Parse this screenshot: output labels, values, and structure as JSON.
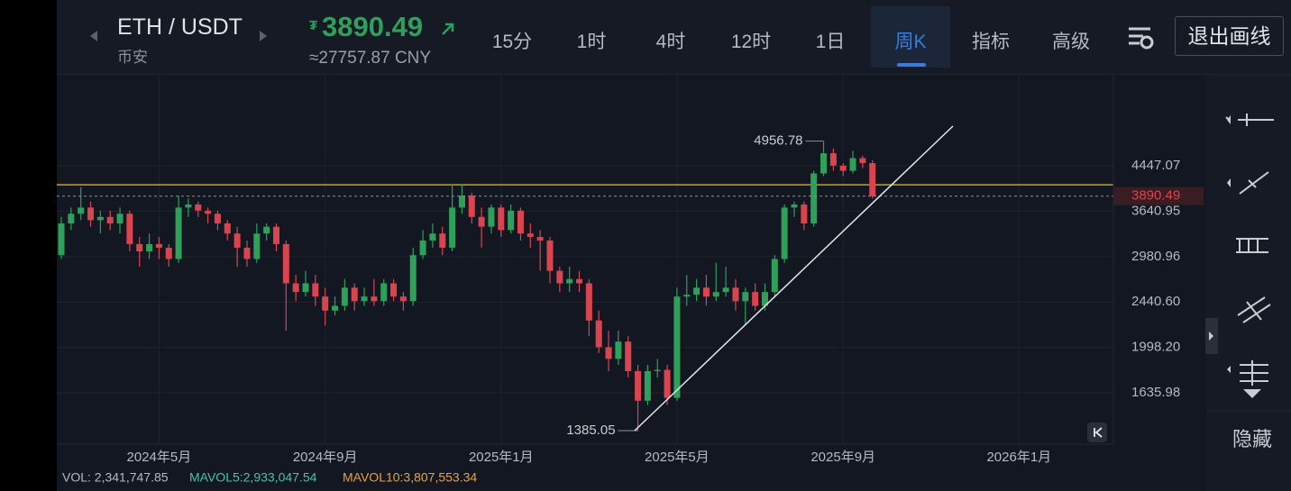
{
  "header": {
    "pair": "ETH / USDT",
    "exchange": "币安",
    "price": "3890.49",
    "cny": "≈27757.87 CNY",
    "intervals": [
      "15分",
      "1时",
      "4时",
      "12时",
      "1日",
      "周K"
    ],
    "menus": [
      "指标",
      "高级"
    ],
    "exit": "退出画线"
  },
  "sidebar": {
    "hide": "隐藏"
  },
  "volume": {
    "vol": "VOL: 2,341,747.85",
    "mavol5": "MAVOL5:2,933,047.54",
    "mavol10": "MAVOL10:3,807,553.34"
  },
  "chart_data": {
    "type": "candlestick",
    "categories": [
      null,
      null,
      null,
      null,
      null,
      null,
      null,
      null,
      null,
      null,
      "2024年5月",
      null,
      null,
      null,
      null,
      null,
      null,
      null,
      null,
      null,
      null,
      null,
      null,
      null,
      null,
      null,
      null,
      "2024年9月",
      null,
      null,
      null,
      null,
      null,
      null,
      null,
      null,
      null,
      null,
      null,
      null,
      null,
      null,
      null,
      null,
      null,
      "2025年1月",
      null,
      null,
      null,
      null,
      null,
      null,
      null,
      null,
      null,
      null,
      null,
      null,
      null,
      null,
      null,
      null,
      null,
      "2025年5月",
      null,
      null,
      null,
      null,
      null,
      null,
      null,
      null,
      null,
      null,
      null,
      null,
      null,
      null,
      null,
      null,
      "2025年9月",
      null,
      null,
      null,
      null,
      null,
      null,
      null,
      null,
      null,
      null,
      null,
      null,
      null,
      null,
      null,
      null,
      null,
      "2026年1月"
    ],
    "open": [
      3000,
      3450,
      3600,
      3700,
      3500,
      3550,
      3450,
      3600,
      3150,
      3050,
      3150,
      3100,
      2950,
      3700,
      3750,
      3650,
      3600,
      3450,
      3300,
      3100,
      2950,
      3300,
      3400,
      3150,
      2650,
      2550,
      2650,
      2500,
      2350,
      2400,
      2600,
      2450,
      2500,
      2450,
      2650,
      2500,
      2450,
      3000,
      3200,
      3300,
      3100,
      3700,
      3900,
      3550,
      3400,
      3700,
      3350,
      3650,
      3300,
      3250,
      3200,
      2800,
      2650,
      2700,
      2650,
      2250,
      2000,
      1900,
      2050,
      1800,
      1580,
      1800,
      1810,
      1600,
      2500,
      2520,
      2600,
      2500,
      2550,
      2600,
      2450,
      2550,
      2400,
      2550,
      2950,
      3700,
      3750,
      3450,
      4300,
      4700,
      4450,
      4350,
      4600,
      4500,
      null,
      null,
      null,
      null,
      null,
      null,
      null,
      null,
      null,
      null,
      null,
      null,
      null,
      null,
      null
    ],
    "high": [
      3550,
      3700,
      4050,
      3800,
      3650,
      3650,
      3700,
      3650,
      3250,
      3300,
      3250,
      3150,
      3900,
      3850,
      3800,
      3700,
      3650,
      3500,
      3400,
      3200,
      3450,
      3450,
      3450,
      3200,
      2750,
      2800,
      2750,
      2600,
      2500,
      2700,
      2650,
      2600,
      2700,
      2700,
      2700,
      2550,
      3100,
      3350,
      3450,
      3400,
      4100,
      4100,
      3950,
      3700,
      3750,
      3750,
      3750,
      3700,
      3450,
      3350,
      3250,
      2850,
      2850,
      2800,
      2700,
      2350,
      2150,
      2150,
      2100,
      1850,
      1850,
      1900,
      1850,
      2600,
      2750,
      2700,
      2750,
      2900,
      2850,
      2700,
      2600,
      2650,
      2650,
      3000,
      3750,
      3800,
      3800,
      4350,
      4956.78,
      4800,
      4500,
      4750,
      4650,
      4560,
      null,
      null,
      null,
      null,
      null,
      null,
      null,
      null,
      null,
      null,
      null,
      null,
      null,
      null,
      null
    ],
    "low": [
      2950,
      3350,
      3500,
      3400,
      3300,
      3350,
      3300,
      3050,
      2850,
      2950,
      2950,
      2850,
      2900,
      3550,
      3550,
      3450,
      3350,
      3200,
      2850,
      2850,
      2900,
      3200,
      3050,
      2150,
      2450,
      2500,
      2400,
      2200,
      2300,
      2350,
      2350,
      2400,
      2400,
      2400,
      2450,
      2350,
      2400,
      2950,
      3100,
      3000,
      3050,
      3600,
      3450,
      3100,
      3300,
      3250,
      3300,
      3200,
      3100,
      2800,
      2650,
      2550,
      2550,
      2550,
      2100,
      1950,
      1800,
      1850,
      1750,
      1385.05,
      1550,
      1750,
      1550,
      1580,
      2400,
      2450,
      2400,
      2450,
      2500,
      2350,
      2200,
      2350,
      2350,
      2500,
      2900,
      3550,
      3350,
      3400,
      4250,
      4350,
      4250,
      4300,
      4400,
      3850,
      null,
      null,
      null,
      null,
      null,
      null,
      null,
      null,
      null,
      null,
      null,
      null,
      null,
      null,
      null
    ],
    "close": [
      3450,
      3600,
      3700,
      3500,
      3550,
      3450,
      3600,
      3150,
      3050,
      3150,
      3100,
      2950,
      3700,
      3750,
      3650,
      3600,
      3450,
      3300,
      3100,
      2950,
      3300,
      3400,
      3150,
      2650,
      2550,
      2650,
      2500,
      2350,
      2400,
      2600,
      2450,
      2500,
      2450,
      2650,
      2500,
      2450,
      3000,
      3200,
      3300,
      3100,
      3700,
      3900,
      3550,
      3400,
      3700,
      3350,
      3650,
      3300,
      3250,
      3200,
      2800,
      2650,
      2700,
      2650,
      2250,
      2000,
      1900,
      2050,
      1800,
      1580,
      1800,
      1810,
      1600,
      2500,
      2520,
      2600,
      2500,
      2550,
      2600,
      2450,
      2550,
      2400,
      2550,
      2950,
      3700,
      3750,
      3450,
      4300,
      4700,
      4450,
      4350,
      4600,
      4500,
      3890.49,
      null,
      null,
      null,
      null,
      null,
      null,
      null,
      null,
      null,
      null,
      null,
      null,
      null,
      null,
      null
    ],
    "up_color": "#2ea05a",
    "down_color": "#d9454f",
    "ylim": [
      1305,
      6640
    ],
    "log_scale": true,
    "grid": true,
    "yticks": [
      4447.07,
      3640.95,
      2980.96,
      {
        "value": 2440.6,
        "label": "2440.60"
      },
      {
        "value": 1998.2,
        "label": "1998.20"
      },
      1635.98
    ],
    "levels": [
      {
        "value": 4090,
        "color": "#c9a227"
      }
    ]
  }
}
